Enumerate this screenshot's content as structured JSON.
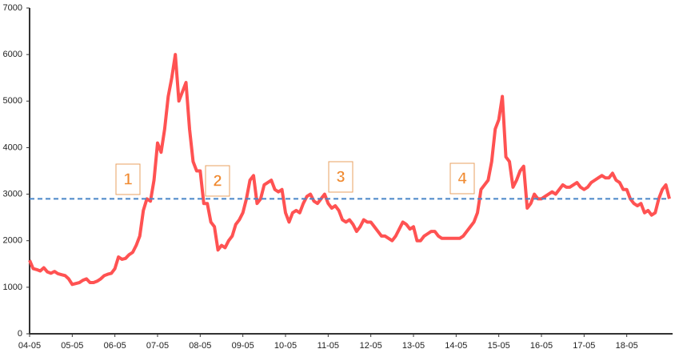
{
  "chart_data": {
    "type": "line",
    "color": "#ff5252",
    "categories": [
      "04-05",
      null,
      null,
      null,
      null,
      null,
      null,
      null,
      null,
      null,
      null,
      null,
      "05-05",
      null,
      null,
      null,
      null,
      null,
      null,
      null,
      null,
      null,
      null,
      null,
      "06-05",
      null,
      null,
      null,
      null,
      null,
      null,
      null,
      null,
      null,
      null,
      null,
      "07-05",
      null,
      null,
      null,
      null,
      null,
      null,
      null,
      null,
      null,
      null,
      null,
      "08-05",
      null,
      null,
      null,
      null,
      null,
      null,
      null,
      null,
      null,
      null,
      null,
      "09-05",
      null,
      null,
      null,
      null,
      null,
      null,
      null,
      null,
      null,
      null,
      null,
      "10-05",
      null,
      null,
      null,
      null,
      null,
      null,
      null,
      null,
      null,
      null,
      null,
      "11-05",
      null,
      null,
      null,
      null,
      null,
      null,
      null,
      null,
      null,
      null,
      null,
      "12-05",
      null,
      null,
      null,
      null,
      null,
      null,
      null,
      null,
      null,
      null,
      null,
      "13-05",
      null,
      null,
      null,
      null,
      null,
      null,
      null,
      null,
      null,
      null,
      null,
      "14-05",
      null,
      null,
      null,
      null,
      null,
      null,
      null,
      null,
      null,
      null,
      null,
      "15-05",
      null,
      null,
      null,
      null,
      null,
      null,
      null,
      null,
      null,
      null,
      null,
      "16-05",
      null,
      null,
      null,
      null,
      null,
      null,
      null,
      null,
      null,
      null,
      null,
      "17-05",
      null,
      null,
      null,
      null,
      null,
      null,
      null,
      null,
      null,
      null,
      null,
      "18-05",
      null,
      null,
      null,
      null,
      null,
      null,
      null,
      null,
      null,
      null,
      null,
      null
    ],
    "values": [
      1580,
      1400,
      1380,
      1350,
      1420,
      1330,
      1300,
      1340,
      1290,
      1270,
      1250,
      1180,
      1060,
      1080,
      1100,
      1150,
      1180,
      1100,
      1100,
      1130,
      1180,
      1250,
      1280,
      1300,
      1400,
      1650,
      1600,
      1620,
      1700,
      1750,
      1900,
      2100,
      2650,
      2900,
      2850,
      3300,
      4100,
      3900,
      4400,
      5100,
      5500,
      6000,
      5000,
      5200,
      5400,
      4400,
      3700,
      3500,
      3500,
      2800,
      2800,
      2400,
      2300,
      1800,
      1900,
      1850,
      2000,
      2100,
      2350,
      2450,
      2600,
      2900,
      3300,
      3400,
      2800,
      2900,
      3200,
      3250,
      3300,
      3100,
      3050,
      3100,
      2600,
      2400,
      2600,
      2650,
      2600,
      2800,
      2950,
      3000,
      2850,
      2800,
      2900,
      3000,
      2800,
      2700,
      2750,
      2650,
      2450,
      2400,
      2450,
      2350,
      2200,
      2300,
      2450,
      2400,
      2400,
      2300,
      2200,
      2100,
      2100,
      2050,
      2000,
      2100,
      2250,
      2400,
      2350,
      2250,
      2300,
      2000,
      2000,
      2100,
      2150,
      2200,
      2200,
      2100,
      2050,
      2050,
      2050,
      2050,
      2050,
      2050,
      2100,
      2200,
      2300,
      2400,
      2600,
      3100,
      3200,
      3300,
      3700,
      4400,
      4600,
      5100,
      3800,
      3700,
      3150,
      3300,
      3500,
      3600,
      2700,
      2800,
      3000,
      2900,
      2900,
      2950,
      3000,
      3050,
      3000,
      3100,
      3200,
      3150,
      3150,
      3200,
      3250,
      3150,
      3100,
      3150,
      3250,
      3300,
      3350,
      3400,
      3350,
      3350,
      3450,
      3300,
      3250,
      3100,
      3100,
      2900,
      2800,
      2750,
      2800,
      2600,
      2650,
      2550,
      2600,
      2900,
      3100,
      3200,
      2900
    ],
    "reference_line": 2900,
    "reference_color": "#4a86c8",
    "annotations": [
      "1",
      "2",
      "3",
      "4"
    ],
    "ylim": [
      0,
      7000
    ],
    "yticks": [
      0,
      1000,
      2000,
      3000,
      4000,
      5000,
      6000,
      7000
    ]
  }
}
